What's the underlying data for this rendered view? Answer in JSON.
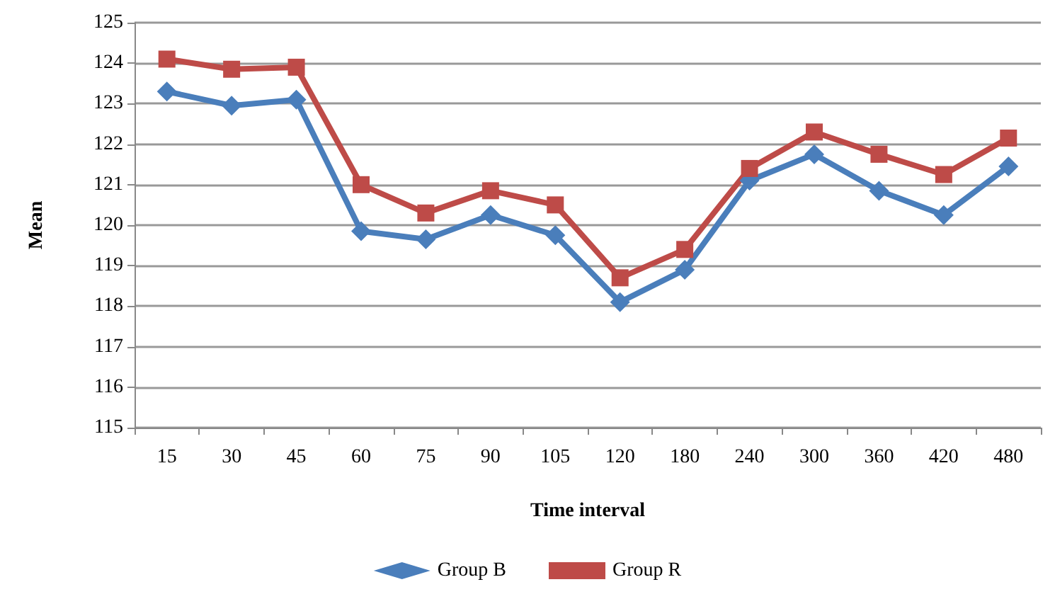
{
  "chart_data": {
    "type": "line",
    "xlabel": "Time interval",
    "ylabel": "Mean",
    "categories": [
      "15",
      "30",
      "45",
      "60",
      "75",
      "90",
      "105",
      "120",
      "180",
      "240",
      "300",
      "360",
      "420",
      "480"
    ],
    "series": [
      {
        "name": "Group B",
        "color": "#4a7ebb",
        "marker": "diamond",
        "values": [
          123.3,
          122.95,
          123.1,
          119.85,
          119.65,
          120.25,
          119.75,
          118.1,
          118.9,
          121.1,
          121.75,
          120.85,
          120.25,
          121.45
        ]
      },
      {
        "name": "Group R",
        "color": "#be4b48",
        "marker": "square",
        "values": [
          124.1,
          123.85,
          123.9,
          121.0,
          120.3,
          120.85,
          120.5,
          118.7,
          119.4,
          121.4,
          122.3,
          121.75,
          121.25,
          122.15
        ]
      }
    ],
    "ylim": [
      115,
      125
    ],
    "yticks": [
      115,
      116,
      117,
      118,
      119,
      120,
      121,
      122,
      123,
      124,
      125
    ],
    "grid": "y",
    "legend": "bottom",
    "line_style": "solid"
  }
}
